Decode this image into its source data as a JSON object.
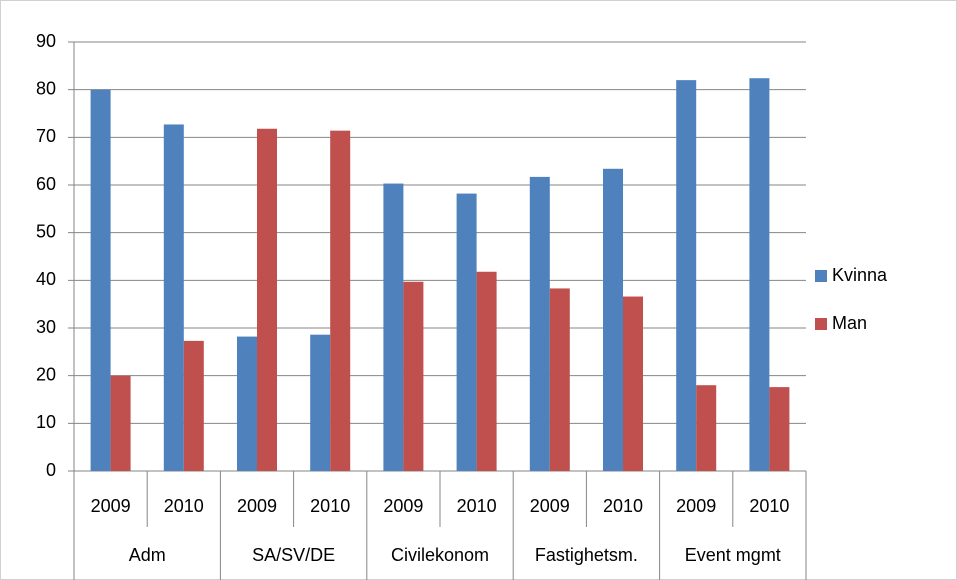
{
  "chart_data": {
    "type": "bar",
    "categories": [
      "2009",
      "2010",
      "2009",
      "2010",
      "2009",
      "2010",
      "2009",
      "2010",
      "2009",
      "2010"
    ],
    "category_groups": [
      "Adm",
      "SA/SV/DE",
      "Civilekonom",
      "Fastighetsm.",
      "Event mgmt"
    ],
    "series": [
      {
        "name": "Kvinna",
        "color": "#4f81bd",
        "values": [
          80,
          72.7,
          28.2,
          28.6,
          60.3,
          58.2,
          61.7,
          63.4,
          82,
          82.4
        ]
      },
      {
        "name": "Man",
        "color": "#c0504d",
        "values": [
          20,
          27.3,
          71.8,
          71.4,
          39.7,
          41.8,
          38.3,
          36.6,
          18,
          17.6
        ]
      }
    ],
    "ylim": [
      0,
      90
    ],
    "yticks": [
      0,
      10,
      20,
      30,
      40,
      50,
      60,
      70,
      80,
      90
    ],
    "grid": true,
    "legend": "right"
  }
}
